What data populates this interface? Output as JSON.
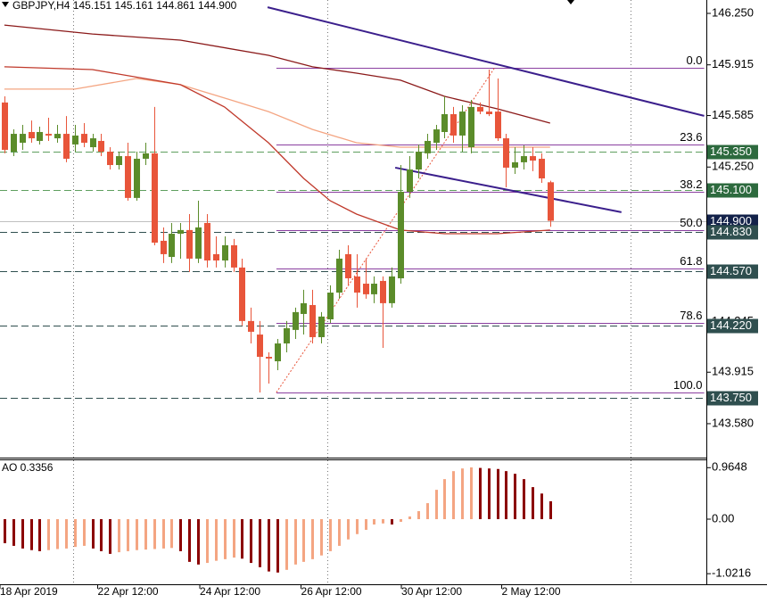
{
  "chart_data": [
    {
      "type": "candlestick",
      "title": "GBPJPY,H4  145.151 145.161 144.861 144.900",
      "xlim": [
        -0.5,
        79.75
      ],
      "ylim": [
        143.365,
        146.337
      ],
      "yticks": [
        {
          "value": 146.25,
          "label": "146.250"
        },
        145.915,
        145.585,
        {
          "value": 145.25,
          "label": "145.250"
        },
        {
          "value": 144.57,
          "label": "144.570"
        },
        144.245,
        143.915,
        {
          "value": 143.58,
          "label": "143.580"
        }
      ],
      "xticks": [
        {
          "value": -0.5,
          "label": "18 Apr 2019"
        },
        {
          "value": 10.6,
          "label": "22 Apr 12:00"
        },
        {
          "value": 22.2,
          "label": "24 Apr 12:00"
        },
        {
          "value": 33.7,
          "label": "26 Apr 12:00"
        },
        {
          "value": 45.1,
          "label": "30 Apr 12:00"
        },
        {
          "value": 56.5,
          "label": "2 May 12:00"
        }
      ],
      "separators": [
        7.8,
        36.7,
        71.1
      ],
      "up_color": "#5b8c2a",
      "down_color": "#e8553a",
      "open": [
        145.67,
        145.35,
        145.408,
        145.478,
        145.42,
        145.466,
        145.437,
        145.466,
        145.397,
        145.466,
        145.379,
        145.42,
        145.35,
        145.263,
        145.321,
        145.049,
        145.304,
        145.339,
        144.77,
        144.665,
        144.816,
        144.84,
        144.654,
        144.886,
        144.683,
        144.642,
        144.741,
        144.596,
        144.248,
        144.16,
        144.015,
        143.986,
        144.102,
        144.19,
        144.294,
        144.352,
        144.143,
        144.259,
        144.433,
        144.683,
        144.538,
        144.491,
        144.422,
        144.509,
        144.364,
        144.526,
        145.089,
        145.234,
        145.339,
        145.408,
        145.478,
        145.594,
        145.455,
        145.379,
        145.641,
        145.611,
        145.611,
        145.437,
        145.246,
        145.281,
        145.321,
        145.304,
        145.151
      ],
      "high": [
        145.71,
        145.495,
        145.524,
        145.553,
        145.513,
        145.571,
        145.524,
        145.582,
        145.524,
        145.536,
        145.466,
        145.466,
        145.379,
        145.35,
        145.408,
        145.35,
        145.408,
        145.641,
        144.857,
        144.886,
        144.886,
        144.944,
        145.031,
        144.944,
        144.799,
        144.799,
        144.782,
        144.654,
        144.335,
        144.248,
        144.044,
        144.131,
        144.248,
        144.335,
        144.451,
        144.451,
        144.306,
        144.48,
        144.712,
        144.741,
        144.683,
        144.654,
        144.538,
        144.538,
        144.596,
        145.263,
        145.321,
        145.397,
        145.466,
        145.524,
        145.71,
        145.641,
        145.652,
        145.687,
        145.67,
        145.884,
        145.826,
        145.466,
        145.379,
        145.391,
        145.379,
        145.339,
        145.161
      ],
      "low": [
        145.339,
        145.321,
        145.362,
        145.408,
        145.397,
        145.42,
        145.408,
        145.281,
        145.35,
        145.379,
        145.35,
        145.321,
        145.234,
        145.234,
        145.031,
        145.031,
        145.263,
        144.741,
        144.625,
        144.625,
        144.654,
        144.567,
        144.625,
        144.596,
        144.596,
        144.596,
        144.567,
        144.219,
        144.102,
        143.783,
        143.841,
        143.928,
        144.044,
        144.131,
        144.16,
        144.102,
        144.102,
        144.236,
        144.393,
        144.48,
        144.335,
        144.393,
        144.364,
        144.073,
        144.335,
        144.491,
        145.049,
        145.176,
        145.304,
        145.362,
        145.437,
        145.408,
        145.35,
        145.339,
        145.594,
        145.582,
        145.42,
        145.118,
        145.205,
        145.234,
        145.223,
        145.147,
        144.861
      ],
      "close": [
        145.362,
        145.466,
        145.466,
        145.437,
        145.478,
        145.455,
        145.466,
        145.304,
        145.455,
        145.408,
        145.437,
        145.35,
        145.263,
        145.321,
        145.049,
        145.304,
        145.339,
        144.758,
        144.683,
        144.816,
        144.84,
        144.654,
        144.857,
        144.642,
        144.642,
        144.741,
        144.596,
        144.248,
        144.178,
        144.015,
        144.004,
        144.102,
        144.201,
        144.306,
        144.364,
        144.143,
        144.277,
        144.433,
        144.654,
        144.526,
        144.433,
        144.422,
        144.491,
        144.364,
        144.538,
        145.089,
        145.234,
        145.35,
        145.42,
        145.495,
        145.594,
        145.455,
        145.611,
        145.641,
        145.611,
        145.594,
        145.437,
        145.246,
        145.281,
        145.321,
        145.292,
        145.176,
        144.9
      ],
      "moving_averages": [
        {
          "color": "#8b1a1a",
          "x": [
            0,
            10,
            20,
            30,
            35,
            40,
            45,
            50,
            56,
            62
          ],
          "values": [
            146.174,
            146.116,
            146.076,
            145.977,
            145.902,
            145.861,
            145.815,
            145.71,
            145.629,
            145.536
          ]
        },
        {
          "color": "#f4a582",
          "x": [
            0,
            8,
            15,
            20,
            25,
            30,
            35,
            40,
            45,
            50,
            56,
            62
          ],
          "values": [
            145.757,
            145.757,
            145.826,
            145.786,
            145.699,
            145.611,
            145.495,
            145.408,
            145.379,
            145.379,
            145.379,
            145.379
          ]
        },
        {
          "color": "#c0392b",
          "x": [
            0,
            10,
            20,
            25,
            30,
            34,
            37,
            40,
            45,
            50,
            56,
            62
          ],
          "values": [
            145.902,
            145.884,
            145.786,
            145.641,
            145.408,
            145.176,
            145.031,
            144.944,
            144.84,
            144.816,
            144.816,
            144.84
          ]
        }
      ],
      "trendlines": [
        {
          "color": "#3b1f8c",
          "x": [
            29.9,
            79.5
          ],
          "values": [
            146.29,
            145.583
          ]
        },
        {
          "color": "#3b1f8c",
          "x": [
            44.4,
            70.1
          ],
          "values": [
            145.246,
            144.956
          ]
        }
      ],
      "fib": {
        "color": "#8a3fa0",
        "x": [
          30.9,
          79.5
        ],
        "diagonal": {
          "color": "#e8553a",
          "x": [
            30.9,
            55.7
          ],
          "values": [
            143.783,
            145.896
          ]
        },
        "levels": [
          {
            "label": "0.0",
            "value": 145.896
          },
          {
            "label": "23.6",
            "value": 145.397
          },
          {
            "label": "38.2",
            "value": 145.089
          },
          {
            "label": "50.0",
            "value": 144.84
          },
          {
            "label": "61.8",
            "value": 144.59
          },
          {
            "label": "78.6",
            "value": 144.235
          },
          {
            "label": "100.0",
            "value": 143.783
          }
        ]
      },
      "levels": [
        {
          "value": 145.35,
          "label": "145.350",
          "line_color": "#5f9f5f",
          "box_color": "#2d6a3e",
          "dashed": true
        },
        {
          "value": 145.1,
          "label": "145.100",
          "line_color": "#5f9f5f",
          "box_color": "#2d6a3e",
          "dashed": true
        },
        {
          "value": 144.9,
          "label": "144.900",
          "line_color": "#c0c0c0",
          "box_color": "#13224a",
          "dashed": false
        },
        {
          "value": 144.83,
          "label": "144.830",
          "line_color": "#2f4f4f",
          "box_color": "#2f4f4f",
          "dashed": true
        },
        {
          "value": 144.57,
          "label": "144.570",
          "line_color": "#2f4f4f",
          "box_color": "#2f4f4f",
          "dashed": true
        },
        {
          "value": 144.22,
          "label": "144.220",
          "line_color": "#2f4f4f",
          "box_color": "#2f4f4f",
          "dashed": true
        },
        {
          "value": 143.75,
          "label": "143.750",
          "line_color": "#2f4f4f",
          "box_color": "#2f4f4f",
          "dashed": true
        }
      ]
    },
    {
      "type": "bar",
      "title": "AO 0.3356",
      "ylim": [
        -1.22,
        1.12
      ],
      "yticks": [
        0.9648,
        {
          "value": 0,
          "label": "0.00"
        },
        -1.0216
      ],
      "up_color": "#f4a582",
      "down_color": "#8b0000",
      "values": [
        -0.45,
        -0.5,
        -0.55,
        -0.58,
        -0.6,
        -0.58,
        -0.56,
        -0.55,
        -0.52,
        -0.5,
        -0.55,
        -0.6,
        -0.65,
        -0.62,
        -0.6,
        -0.58,
        -0.57,
        -0.56,
        -0.55,
        -0.54,
        -0.6,
        -0.8,
        -0.85,
        -0.82,
        -0.78,
        -0.75,
        -0.72,
        -0.74,
        -0.82,
        -0.9,
        -0.98,
        -1.0,
        -0.95,
        -0.85,
        -0.8,
        -0.75,
        -0.68,
        -0.6,
        -0.5,
        -0.38,
        -0.28,
        -0.2,
        -0.1,
        -0.08,
        -0.1,
        -0.05,
        0.05,
        0.15,
        0.3,
        0.55,
        0.75,
        0.9,
        0.95,
        0.97,
        0.96,
        0.95,
        0.94,
        0.9,
        0.85,
        0.75,
        0.6,
        0.48,
        0.3356
      ]
    }
  ]
}
